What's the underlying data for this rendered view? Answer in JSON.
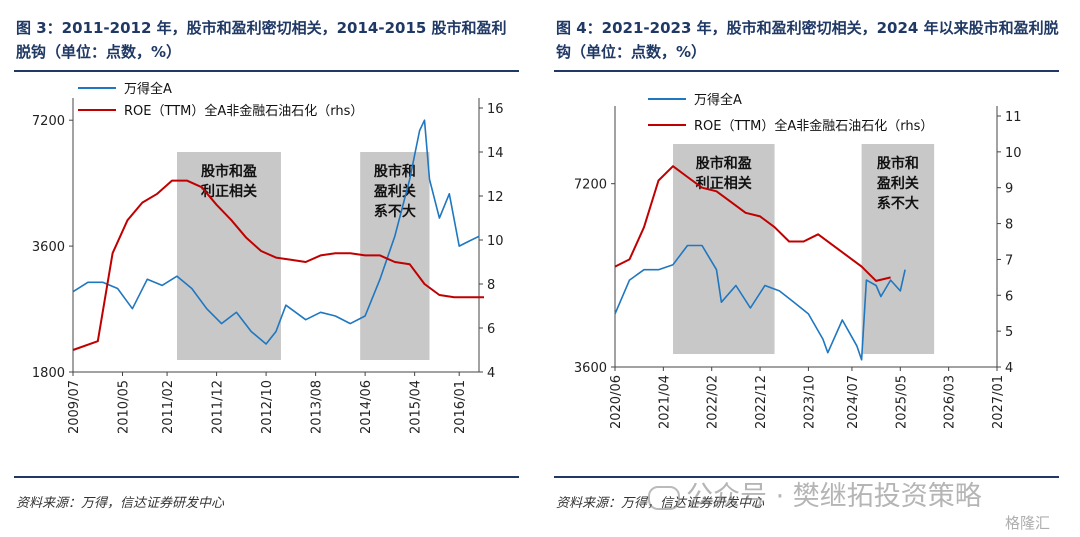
{
  "left": {
    "title": "图 3：2011-2012 年，股市和盈利密切相关，2014-2015 股市和盈利脱钩（单位：点数，%）",
    "source": "资料来源：万得，信达证券研发中心"
  },
  "right": {
    "title": "图 4：2021-2023 年，股市和盈利密切相关，2024 年以来股市和盈利脱钩（单位：点数，%）",
    "source": "资料来源：万得，信达证券研发中心"
  },
  "watermark": {
    "text": "公众号 · 樊继拓投资策略",
    "badge": "格隆汇"
  },
  "colors": {
    "stock": "#1f77c0",
    "roe": "#c00000",
    "shade": "#c8c8c8",
    "axis": "#444444",
    "title": "#1f3864"
  },
  "chart_data": [
    {
      "type": "line",
      "legend_position": "top-left",
      "series": [
        {
          "name": "万得全A",
          "axis": "left",
          "color": "#1f77c0",
          "x": [
            "2009-07",
            "2009-10",
            "2010-01",
            "2010-04",
            "2010-07",
            "2010-10",
            "2011-01",
            "2011-04",
            "2011-07",
            "2011-10",
            "2012-01",
            "2012-04",
            "2012-07",
            "2012-10",
            "2012-12",
            "2013-02",
            "2013-06",
            "2013-09",
            "2013-12",
            "2014-03",
            "2014-06",
            "2014-09",
            "2014-12",
            "2015-03",
            "2015-05",
            "2015-06",
            "2015-07",
            "2015-09",
            "2015-11",
            "2016-01",
            "2016-03",
            "2016-05"
          ],
          "values": [
            2800,
            2950,
            2950,
            2850,
            2550,
            3000,
            2900,
            3050,
            2850,
            2550,
            2350,
            2500,
            2250,
            2100,
            2250,
            2600,
            2400,
            2500,
            2450,
            2350,
            2450,
            3000,
            3800,
            5200,
            6800,
            7200,
            5200,
            4200,
            4800,
            3600,
            3700,
            3800
          ]
        },
        {
          "name": "ROE（TTM）全A非金融石油石化（rhs）",
          "axis": "right",
          "color": "#c00000",
          "x": [
            "2009-07",
            "2009-12",
            "2010-03",
            "2010-06",
            "2010-09",
            "2010-12",
            "2011-03",
            "2011-06",
            "2011-09",
            "2011-12",
            "2012-03",
            "2012-06",
            "2012-09",
            "2012-12",
            "2013-03",
            "2013-06",
            "2013-09",
            "2013-12",
            "2014-03",
            "2014-06",
            "2014-09",
            "2014-12",
            "2015-03",
            "2015-06",
            "2015-09",
            "2015-12",
            "2016-03",
            "2016-06"
          ],
          "values": [
            5.0,
            5.4,
            9.4,
            10.9,
            11.7,
            12.1,
            12.7,
            12.7,
            12.4,
            11.6,
            10.9,
            10.1,
            9.5,
            9.2,
            9.1,
            9.0,
            9.3,
            9.4,
            9.4,
            9.3,
            9.3,
            9.0,
            8.9,
            8.0,
            7.5,
            7.4,
            7.4,
            7.4
          ]
        }
      ],
      "shaded_periods": [
        {
          "start": "2011-04",
          "end": "2013-01",
          "label": [
            "股市和盈",
            "利正相关"
          ]
        },
        {
          "start": "2014-05",
          "end": "2015-07",
          "label": [
            "股市和",
            "盈利关",
            "系不大"
          ]
        }
      ],
      "x_ticks": [
        "2009/07",
        "2010/05",
        "2011/02",
        "2011/12",
        "2012/10",
        "2013/08",
        "2014/06",
        "2015/04",
        "2016/01"
      ],
      "y_left": {
        "ticks": [
          "1800",
          "3600",
          "7200"
        ],
        "scale": "log",
        "range": [
          1800,
          7700
        ]
      },
      "y_right": {
        "ticks": [
          "4",
          "6",
          "8",
          "10",
          "12",
          "14",
          "16"
        ],
        "range": [
          4,
          16
        ]
      }
    },
    {
      "type": "line",
      "legend_position": "top-left",
      "series": [
        {
          "name": "万得全A",
          "axis": "left",
          "color": "#1f77c0",
          "x": [
            "2020-06",
            "2020-09",
            "2020-12",
            "2021-03",
            "2021-06",
            "2021-09",
            "2021-12",
            "2022-03",
            "2022-04",
            "2022-07",
            "2022-10",
            "2023-01",
            "2023-04",
            "2023-07",
            "2023-10",
            "2024-01",
            "2024-02",
            "2024-05",
            "2024-08",
            "2024-09",
            "2024-10",
            "2024-12",
            "2025-01",
            "2025-03",
            "2025-05",
            "2025-06"
          ],
          "values": [
            4400,
            5000,
            5200,
            5200,
            5300,
            5700,
            5700,
            5200,
            4600,
            4900,
            4500,
            4900,
            4800,
            4600,
            4400,
            4000,
            3800,
            4300,
            3900,
            3700,
            5000,
            4900,
            4700,
            5000,
            4800,
            5200
          ]
        },
        {
          "name": "ROE（TTM）全A非金融石油石化（rhs）",
          "axis": "right",
          "color": "#c00000",
          "x": [
            "2020-06",
            "2020-09",
            "2020-12",
            "2021-03",
            "2021-06",
            "2021-09",
            "2021-12",
            "2022-03",
            "2022-06",
            "2022-09",
            "2022-12",
            "2023-03",
            "2023-06",
            "2023-09",
            "2023-12",
            "2024-03",
            "2024-06",
            "2024-09",
            "2024-12",
            "2025-03"
          ],
          "values": [
            6.8,
            7.0,
            7.9,
            9.2,
            9.6,
            9.3,
            9.0,
            8.9,
            8.6,
            8.3,
            8.2,
            7.9,
            7.5,
            7.5,
            7.7,
            7.4,
            7.1,
            6.8,
            6.4,
            6.5
          ]
        }
      ],
      "shaded_periods": [
        {
          "start": "2021-06",
          "end": "2023-03",
          "label": [
            "股市和盈",
            "利正相关"
          ]
        },
        {
          "start": "2024-09",
          "end": "2025-12",
          "label": [
            "股市和",
            "盈利关",
            "系不大"
          ]
        }
      ],
      "x_ticks": [
        "2020/06",
        "2021/04",
        "2022/02",
        "2022/12",
        "2023/10",
        "2024/07",
        "2025/05",
        "2026/03",
        "2027/01"
      ],
      "y_left": {
        "ticks": [
          "3600",
          "7200"
        ],
        "scale": "log",
        "range": [
          3600,
          9300
        ]
      },
      "y_right": {
        "ticks": [
          "4",
          "5",
          "6",
          "7",
          "8",
          "9",
          "10",
          "11"
        ],
        "range": [
          4,
          11
        ]
      }
    }
  ]
}
